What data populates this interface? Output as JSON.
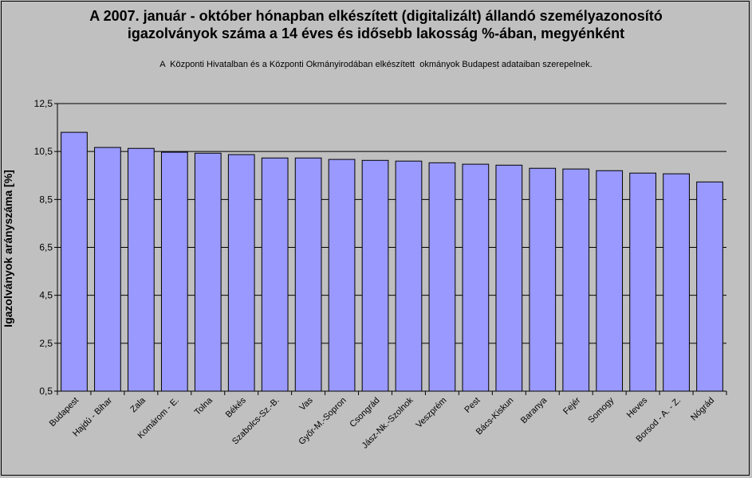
{
  "chart_data": {
    "type": "bar",
    "title_lines": [
      "A 2007. január - október hónapban elkészített (digitalizált) állandó személyazonosító",
      "igazolványok száma a 14 éves és idősebb lakosság %-ában, megyénként"
    ],
    "subtitle": "A  Központi Hivatalban és a Központi Okmányirodában elkészített  okmányok Budapest adataiban szerepelnek.",
    "ylabel": "Igazolványok arányszáma [%]",
    "xlabel": "",
    "ylim": [
      0.5,
      12.5
    ],
    "yticks": [
      "0,5",
      "2,5",
      "4,5",
      "6,5",
      "8,5",
      "10,5",
      "12,5"
    ],
    "ytick_values": [
      0.5,
      2.5,
      4.5,
      6.5,
      8.5,
      10.5,
      12.5
    ],
    "grid": true,
    "bar_color": "#9999ff",
    "plot_bg": "#c0c0c0",
    "categories": [
      "Budapest",
      "Hajdú - Bihar",
      "Zala",
      "Komárom - E.",
      "Tolna",
      "Békés",
      "Szabolcs-Sz.-B.",
      "Vas",
      "Győr-M.-Sopron",
      "Csongrád",
      "Jász-Nk.-Szolnok",
      "Veszprém",
      "Pest",
      "Bács-Kiskun",
      "Baranya",
      "Fejér",
      "Somogy",
      "Heves",
      "Borsod - A. - Z.",
      "Nógrád"
    ],
    "values": [
      11.3,
      10.67,
      10.63,
      10.47,
      10.43,
      10.37,
      10.23,
      10.23,
      10.17,
      10.13,
      10.1,
      10.03,
      9.97,
      9.93,
      9.8,
      9.77,
      9.7,
      9.6,
      9.57,
      9.23
    ]
  }
}
